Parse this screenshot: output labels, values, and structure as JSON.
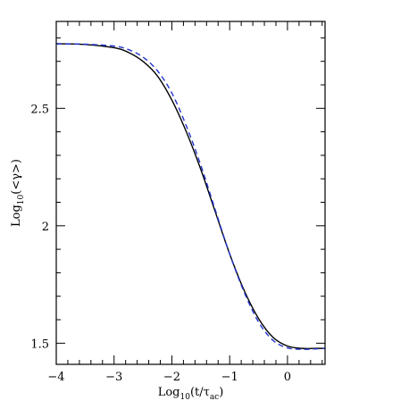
{
  "chart_data": {
    "type": "line",
    "title": "",
    "xlabel": "Log10(t/τac)",
    "ylabel": "Log10(<γ>)",
    "xlabel_parts": {
      "base": "Log",
      "base_sub": "10",
      "open": "(t/τ",
      "sub": "ac",
      "close": ")"
    },
    "ylabel_parts": {
      "base": "Log",
      "base_sub": "10",
      "open": "(<γ>)"
    },
    "xlim": [
      -4,
      0.65
    ],
    "ylim": [
      1.41,
      2.87
    ],
    "x_ticks": [
      -4,
      -3,
      -2,
      -1,
      0
    ],
    "x_tick_labels": [
      "−4",
      "−3",
      "−2",
      "−1",
      "0"
    ],
    "y_ticks": [
      1.5,
      2,
      2.5
    ],
    "y_tick_labels": [
      "1.5",
      "2",
      "2.5"
    ],
    "grid": false,
    "series": [
      {
        "style": "solid",
        "color": "#000000",
        "x": [
          -4.0,
          -3.5,
          -3.0,
          -2.75,
          -2.5,
          -2.25,
          -2.0,
          -1.75,
          -1.5,
          -1.25,
          -1.0,
          -0.75,
          -0.5,
          -0.25,
          0.0,
          0.25,
          0.5,
          0.65
        ],
        "y": [
          2.775,
          2.772,
          2.758,
          2.738,
          2.7,
          2.638,
          2.535,
          2.4,
          2.24,
          2.06,
          1.88,
          1.725,
          1.605,
          1.525,
          1.488,
          1.478,
          1.478,
          1.478
        ]
      },
      {
        "style": "dashed",
        "color": "#2233cc",
        "x": [
          -4.0,
          -3.5,
          -3.0,
          -2.75,
          -2.5,
          -2.25,
          -2.0,
          -1.75,
          -1.5,
          -1.25,
          -1.0,
          -0.75,
          -0.5,
          -0.25,
          0.0,
          0.25,
          0.5,
          0.65
        ],
        "y": [
          2.775,
          2.773,
          2.765,
          2.75,
          2.718,
          2.66,
          2.565,
          2.425,
          2.258,
          2.068,
          1.88,
          1.718,
          1.59,
          1.512,
          1.48,
          1.474,
          1.476,
          1.478
        ]
      }
    ]
  }
}
